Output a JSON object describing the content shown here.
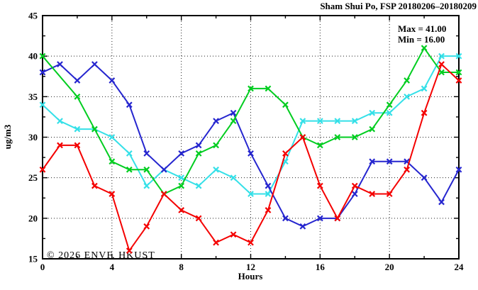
{
  "chart_data": {
    "type": "line",
    "title": "Sham Shui Po, FSP 20180206–20180209",
    "xlabel": "Hours",
    "ylabel": "ug/m3",
    "xlim": [
      0,
      24
    ],
    "ylim": [
      15,
      45
    ],
    "x_major_ticks": [
      0,
      4,
      8,
      12,
      16,
      20,
      24
    ],
    "y_major_ticks": [
      15,
      20,
      25,
      30,
      35,
      40,
      45
    ],
    "x_minor_step": 2,
    "y_minor_step": 2.5,
    "grid": true,
    "legend_position": "top-right-inside",
    "annotations": [
      "Max = 41.00",
      "Min = 16.00"
    ],
    "watermark": "© 2026 ENVF, HKUST",
    "x": [
      0,
      1,
      2,
      3,
      4,
      5,
      6,
      7,
      8,
      9,
      10,
      11,
      12,
      13,
      14,
      15,
      16,
      17,
      18,
      19,
      20,
      21,
      22,
      23,
      24
    ],
    "series": [
      {
        "name": "series-cyan",
        "color": "#35e0e8",
        "values": [
          34,
          32,
          31,
          31,
          30,
          28,
          24,
          26,
          25,
          24,
          26,
          25,
          23,
          23,
          27,
          32,
          32,
          32,
          32,
          33,
          33,
          35,
          36,
          40,
          40
        ]
      },
      {
        "name": "series-blue",
        "color": "#2626cf",
        "values": [
          38,
          39,
          37,
          39,
          37,
          34,
          28,
          26,
          28,
          29,
          32,
          33,
          28,
          24,
          20,
          19,
          20,
          20,
          23,
          27,
          27,
          27,
          25,
          22,
          26
        ]
      },
      {
        "name": "series-green",
        "color": "#00cd20",
        "values": [
          40,
          null,
          35,
          31,
          27,
          26,
          26,
          23,
          24,
          28,
          29,
          32,
          36,
          36,
          34,
          30,
          29,
          30,
          30,
          31,
          34,
          37,
          41,
          38,
          38
        ]
      },
      {
        "name": "series-red",
        "color": "#f40000",
        "values": [
          26,
          29,
          29,
          24,
          23,
          16,
          19,
          23,
          21,
          20,
          17,
          18,
          17,
          21,
          28,
          30,
          24,
          20,
          24,
          23,
          23,
          26,
          33,
          39,
          37
        ]
      }
    ]
  }
}
